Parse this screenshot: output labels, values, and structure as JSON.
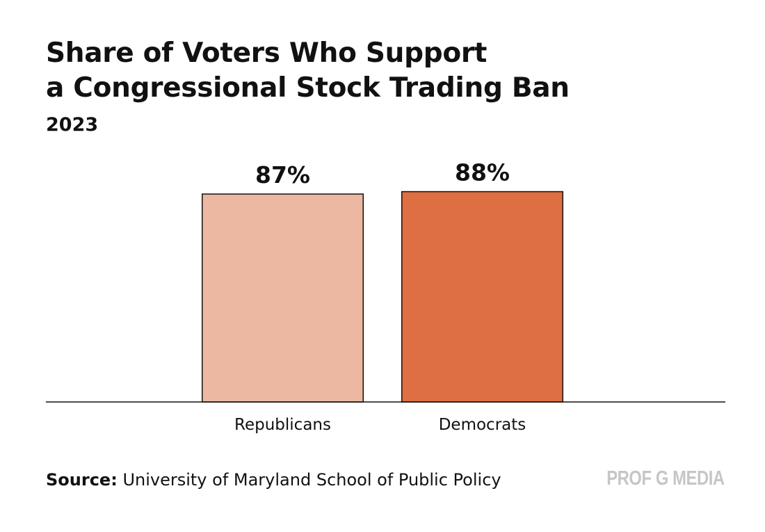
{
  "chart_data": {
    "type": "bar",
    "title_lines": [
      "Share of Voters Who Support",
      "a Congressional Stock Trading Ban"
    ],
    "subtitle": "2023",
    "categories": [
      "Republicans",
      "Democrats"
    ],
    "values": [
      87,
      88
    ],
    "data_labels": [
      "87%",
      "88%"
    ],
    "colors": [
      "#EDB8A1",
      "#DE6F42"
    ],
    "ylim": [
      0,
      100
    ],
    "grid": false,
    "xlabel": "",
    "ylabel": ""
  },
  "source": {
    "label": "Source:",
    "text": "University of Maryland School of Public Policy"
  },
  "brand": "PROF G MEDIA"
}
